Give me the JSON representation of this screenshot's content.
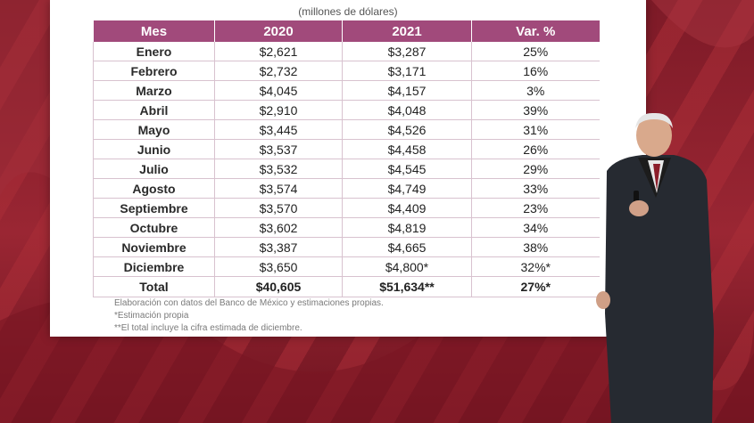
{
  "slide": {
    "subtitle": "(millones de dólares)",
    "headers": [
      "Mes",
      "2020",
      "2021",
      "Var. %"
    ],
    "rows": [
      [
        "Enero",
        "$2,621",
        "$3,287",
        "25%"
      ],
      [
        "Febrero",
        "$2,732",
        "$3,171",
        "16%"
      ],
      [
        "Marzo",
        "$4,045",
        "$4,157",
        "3%"
      ],
      [
        "Abril",
        "$2,910",
        "$4,048",
        "39%"
      ],
      [
        "Mayo",
        "$3,445",
        "$4,526",
        "31%"
      ],
      [
        "Junio",
        "$3,537",
        "$4,458",
        "26%"
      ],
      [
        "Julio",
        "$3,532",
        "$4,545",
        "29%"
      ],
      [
        "Agosto",
        "$3,574",
        "$4,749",
        "33%"
      ],
      [
        "Septiembre",
        "$3,570",
        "$4,409",
        "23%"
      ],
      [
        "Octubre",
        "$3,602",
        "$4,819",
        "34%"
      ],
      [
        "Noviembre",
        "$3,387",
        "$4,665",
        "38%"
      ],
      [
        "Diciembre",
        "$3,650",
        "$4,800*",
        "32%*"
      ]
    ],
    "total": [
      "Total",
      "$40,605",
      "$51,634**",
      "27%*"
    ],
    "notes": [
      "Elaboración con datos del Banco de México y estimaciones propias.",
      "*Estimación propia",
      "**El total incluye la cifra estimada de diciembre."
    ]
  },
  "colors": {
    "header_bg": "#a14a7b",
    "backdrop": "#8a1f2b"
  }
}
